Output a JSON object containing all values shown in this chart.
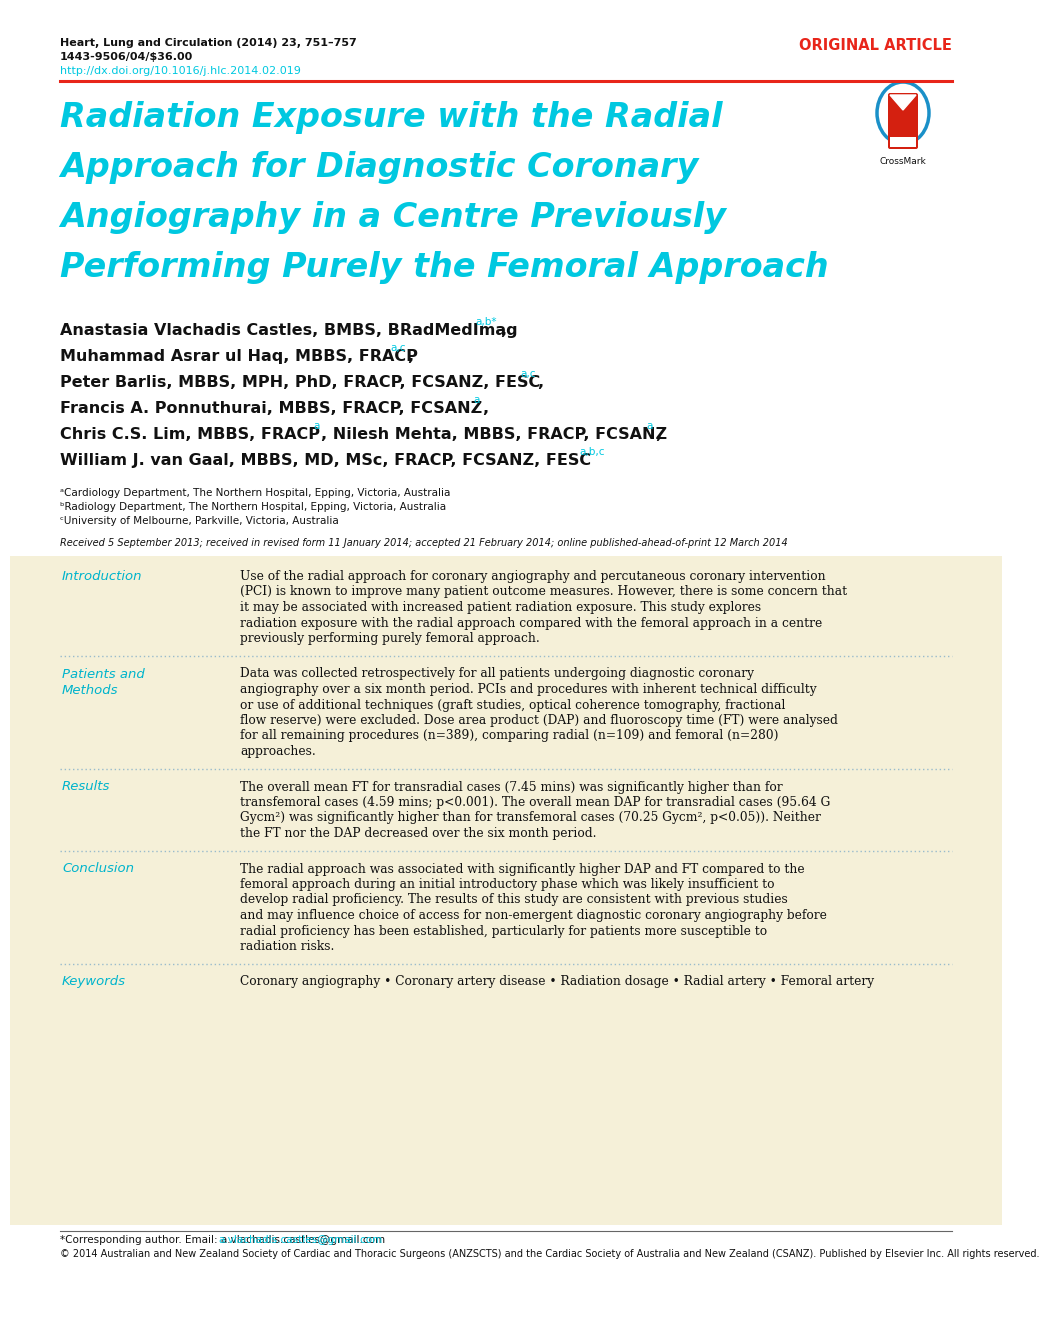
{
  "bg_color": "#ffffff",
  "abstract_bg": "#f5f0d8",
  "journal_line1": "Heart, Lung and Circulation (2014) 23, 751–757",
  "journal_line2": "1443-9506/04/$36.00",
  "doi": "http://dx.doi.org/10.1016/j.hlc.2014.02.019",
  "original_article": "ORIGINAL ARTICLE",
  "title_lines": [
    "Radiation Exposure with the Radial",
    "Approach for Diagnostic Coronary",
    "Angiography in a Centre Previously",
    "Performing Purely the Femoral Approach"
  ],
  "section1_label": "Introduction",
  "section1_text": "Use of the radial approach for coronary angiography and percutaneous coronary intervention (PCI) is known to improve many patient outcome measures. However, there is some concern that it may be associated with increased patient radiation exposure. This study explores radiation exposure with the radial approach compared with the femoral approach in a centre previously performing purely femoral approach.",
  "section2_label1": "Patients and",
  "section2_label2": "Methods",
  "section2_text": "Data was collected retrospectively for all patients undergoing diagnostic coronary angiography over a six month period. PCIs and procedures with inherent technical difficulty or use of additional techniques (graft studies, optical coherence tomography, fractional flow reserve) were excluded. Dose area product (DAP) and fluoroscopy time (FT) were analysed for all remaining procedures (n=389), comparing radial (n=109) and femoral (n=280) approaches.",
  "section3_label": "Results",
  "section3_text": "The overall mean FT for transradial cases (7.45 mins) was significantly higher than for transfemoral cases (4.59 mins; p<0.001). The overall mean DAP for transradial cases (95.64 G Gycm²) was significantly higher than for transfemoral cases (70.25 Gycm², p<0.05)). Neither the FT nor the DAP decreased over the six month period.",
  "section4_label": "Conclusion",
  "section4_text": "The radial approach was associated with significantly higher DAP and FT compared to the femoral approach during an initial introductory phase which was likely insufficient to develop radial proficiency. The results of this study are consistent with previous studies and may influence choice of access for non-emergent diagnostic coronary angiography before radial proficiency has been established, particularly for patients more susceptible to radiation risks.",
  "section5_label": "Keywords",
  "section5_text": "Coronary angiography • Coronary artery disease • Radiation dosage • Radial artery • Femoral artery",
  "affil_a": "ᵃCardiology Department, The Northern Hospital, Epping, Victoria, Australia",
  "affil_b": "ᵇRadiology Department, The Northern Hospital, Epping, Victoria, Australia",
  "affil_c": "ᶜUniversity of Melbourne, Parkville, Victoria, Australia",
  "received": "Received 5 September 2013; received in revised form 11 January 2014; accepted 21 February 2014; online published-ahead-of-print 12 March 2014",
  "footer_star": "*Corresponding author. Email: a.vlachadis.castles@gmail.com",
  "footer_copy": "© 2014 Australian and New Zealand Society of Cardiac and Thoracic Surgeons (ANZSCTS) and the Cardiac Society of Australia and New Zealand (CSANZ). Published by Elsevier Inc. All rights reserved.",
  "cyan_color": "#00c8e0",
  "red_color": "#e8251a",
  "dark_red": "#c41b10",
  "black": "#111111",
  "gray": "#666666",
  "section_label_color": "#00b4cc",
  "dotted_line_color": "#99bbcc"
}
